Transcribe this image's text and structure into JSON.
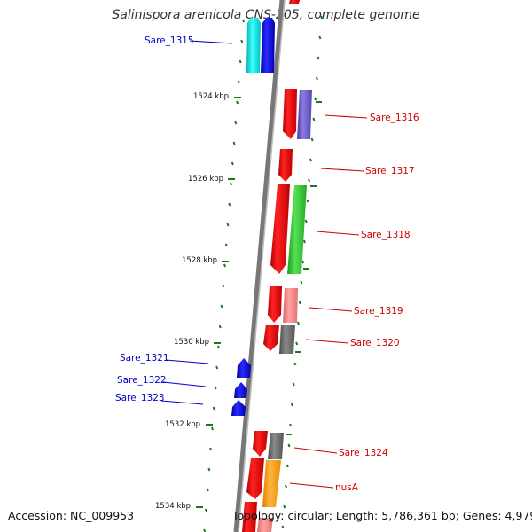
{
  "title": "Salinispora arenicola CNS-205, complete genome",
  "accession_text": "Accession: NC_009953",
  "summary_text": "Topology: circular; Length: 5,786,361 bp; Genes: 4,979",
  "scale_ticks": [
    "1524 kbp",
    "1526 kbp",
    "1528 kbp",
    "1530 kbp",
    "1532 kbp",
    "1534 kbp"
  ],
  "gene_labels": {
    "left": [
      "Sare_1315",
      "Sare_1321",
      "Sare_1322",
      "Sare_1323"
    ],
    "right": [
      "Sare_1316",
      "Sare_1317",
      "Sare_1318",
      "Sare_1319",
      "Sare_1320",
      "Sare_1324",
      "nusA"
    ]
  },
  "colors": {
    "forward_label": "#0000cc",
    "reverse_label": "#cc0000",
    "backbone": "#888888",
    "tick": "#1a7a1a",
    "cds_red": "#ee0000",
    "cds_blue": "#0000ee",
    "cds_cyan": "#00e5e5",
    "cds_purple": "#6a5acd",
    "cds_green": "#33cc33",
    "cds_pink": "#f08080",
    "cds_gray": "#666666",
    "cds_orange": "#ff9900"
  }
}
